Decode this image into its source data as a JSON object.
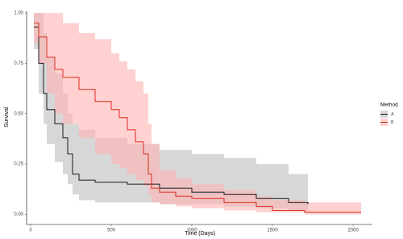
{
  "chart_data": {
    "type": "step",
    "x_label": "Time (Days)",
    "y_label": "Survival",
    "legend_title": "Method",
    "xlim": [
      -25,
      2120
    ],
    "ylim": [
      -0.05,
      1.0
    ],
    "xticks": [
      0,
      500,
      1000,
      1500,
      2000
    ],
    "yticks": [
      {
        "value": 0,
        "label": "0.00"
      },
      {
        "value": 0.25,
        "label": "0.25"
      },
      {
        "value": 0.5,
        "label": "0.50"
      },
      {
        "value": 0.75,
        "label": "0.75"
      },
      {
        "value": 1,
        "label": "1.00"
      }
    ],
    "legend": "right",
    "series": [
      {
        "name": "A",
        "color": "#1a1a1a",
        "band_color": "#bdbdbd",
        "x": [
          20,
          50,
          80,
          100,
          150,
          200,
          230,
          260,
          300,
          400,
          600,
          800,
          1000,
          1200,
          1400,
          1600,
          1720
        ],
        "values": [
          0.93,
          0.75,
          0.6,
          0.52,
          0.45,
          0.38,
          0.3,
          0.2,
          0.17,
          0.16,
          0.15,
          0.13,
          0.11,
          0.1,
          0.08,
          0.06,
          0.05
        ],
        "upper": [
          1,
          1,
          0.9,
          0.78,
          0.7,
          0.6,
          0.5,
          0.45,
          0.42,
          0.38,
          0.35,
          0.32,
          0.3,
          0.28,
          0.25,
          0.2,
          0.18
        ],
        "lower": [
          0.82,
          0.6,
          0.45,
          0.35,
          0.26,
          0.2,
          0.15,
          0.1,
          0.07,
          0.06,
          0.06,
          0.05,
          0.05,
          0.04,
          0.03,
          0.02,
          0.01
        ]
      },
      {
        "name": "B",
        "color": "#d7301f",
        "band_color": "#ffb3b3",
        "x": [
          20,
          50,
          100,
          150,
          200,
          300,
          400,
          500,
          550,
          600,
          650,
          700,
          730,
          750,
          800,
          900,
          1000,
          1200,
          1400,
          1500,
          1700,
          2050
        ],
        "values": [
          0.95,
          0.88,
          0.78,
          0.72,
          0.68,
          0.62,
          0.56,
          0.52,
          0.48,
          0.42,
          0.36,
          0.3,
          0.2,
          0.13,
          0.11,
          0.09,
          0.08,
          0.06,
          0.04,
          0.02,
          0.01,
          0.01
        ],
        "upper": [
          1,
          1,
          1,
          1,
          0.95,
          0.9,
          0.87,
          0.8,
          0.76,
          0.72,
          0.66,
          0.6,
          0.45,
          0.35,
          0.22,
          0.18,
          0.15,
          0.12,
          0.09,
          0.07,
          0.06,
          0.05
        ],
        "lower": [
          0.85,
          0.75,
          0.6,
          0.5,
          0.45,
          0.38,
          0.3,
          0.25,
          0.23,
          0.2,
          0.17,
          0.14,
          0.1,
          0.06,
          0.05,
          0.04,
          0.03,
          0.02,
          0.01,
          0.01,
          0,
          0
        ]
      }
    ]
  }
}
